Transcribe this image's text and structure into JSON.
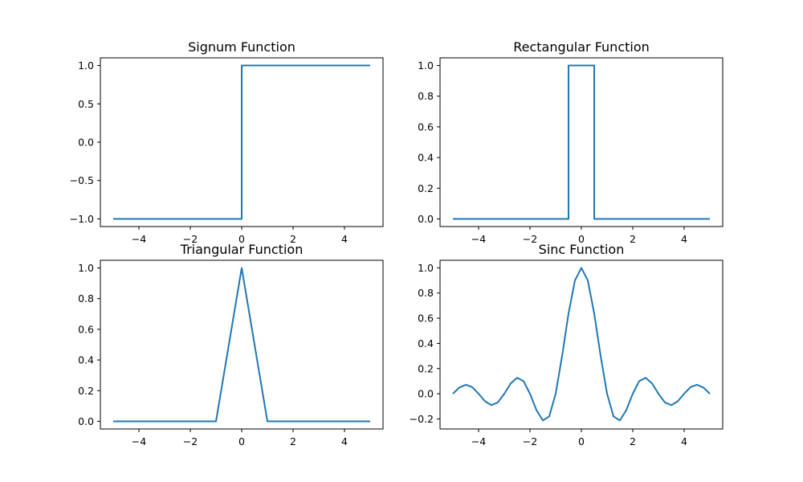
{
  "chart_data": [
    {
      "type": "line",
      "title": "Signum Function",
      "xlim": [
        -5.5,
        5.5
      ],
      "ylim": [
        -1.1,
        1.1
      ],
      "xticks": [
        -4,
        -2,
        0,
        2,
        4
      ],
      "xtick_labels": [
        "−4",
        "−2",
        "0",
        "2",
        "4"
      ],
      "yticks": [
        -1.0,
        -0.5,
        0.0,
        0.5,
        1.0
      ],
      "ytick_labels": [
        "−1.0",
        "−0.5",
        "0.0",
        "0.5",
        "1.0"
      ],
      "color": "#1f77b4",
      "grid": false,
      "series": [
        {
          "x": [
            -5,
            0,
            0,
            5
          ],
          "y": [
            -1,
            -1,
            1,
            1
          ]
        }
      ]
    },
    {
      "type": "line",
      "title": "Rectangular Function",
      "xlim": [
        -5.5,
        5.5
      ],
      "ylim": [
        -0.05,
        1.05
      ],
      "xticks": [
        -4,
        -2,
        0,
        2,
        4
      ],
      "xtick_labels": [
        "−4",
        "−2",
        "0",
        "2",
        "4"
      ],
      "yticks": [
        0.0,
        0.2,
        0.4,
        0.6,
        0.8,
        1.0
      ],
      "ytick_labels": [
        "0.0",
        "0.2",
        "0.4",
        "0.6",
        "0.8",
        "1.0"
      ],
      "color": "#1f77b4",
      "grid": false,
      "series": [
        {
          "x": [
            -5,
            -0.5,
            -0.5,
            0.5,
            0.5,
            5
          ],
          "y": [
            0,
            0,
            1,
            1,
            0,
            0
          ]
        }
      ]
    },
    {
      "type": "line",
      "title": "Triangular Function",
      "xlim": [
        -5.5,
        5.5
      ],
      "ylim": [
        -0.05,
        1.05
      ],
      "xticks": [
        -4,
        -2,
        0,
        2,
        4
      ],
      "xtick_labels": [
        "−4",
        "−2",
        "0",
        "2",
        "4"
      ],
      "yticks": [
        0.0,
        0.2,
        0.4,
        0.6,
        0.8,
        1.0
      ],
      "ytick_labels": [
        "0.0",
        "0.2",
        "0.4",
        "0.6",
        "0.8",
        "1.0"
      ],
      "color": "#1f77b4",
      "grid": false,
      "series": [
        {
          "x": [
            -5,
            -1,
            0,
            1,
            5
          ],
          "y": [
            0,
            0,
            1,
            0,
            0
          ]
        }
      ]
    },
    {
      "type": "line",
      "title": "Sinc Function",
      "xlim": [
        -5.5,
        5.5
      ],
      "ylim": [
        -0.28,
        1.06
      ],
      "xticks": [
        -4,
        -2,
        0,
        2,
        4
      ],
      "xtick_labels": [
        "−4",
        "−2",
        "0",
        "2",
        "4"
      ],
      "yticks": [
        -0.2,
        0.0,
        0.2,
        0.4,
        0.6,
        0.8,
        1.0
      ],
      "ytick_labels": [
        "−0.2",
        "0.0",
        "0.2",
        "0.4",
        "0.6",
        "0.8",
        "1.0"
      ],
      "color": "#1f77b4",
      "grid": false,
      "series": [
        {
          "x": [
            -5,
            -4.75,
            -4.5,
            -4.25,
            -4,
            -3.75,
            -3.5,
            -3.25,
            -3,
            -2.75,
            -2.5,
            -2.25,
            -2,
            -1.75,
            -1.5,
            -1.25,
            -1,
            -0.75,
            -0.5,
            -0.25,
            0,
            0.25,
            0.5,
            0.75,
            1,
            1.25,
            1.5,
            1.75,
            2,
            2.25,
            2.5,
            2.75,
            3,
            3.25,
            3.5,
            3.75,
            4,
            4.25,
            4.5,
            4.75,
            5
          ],
          "y": [
            0,
            0.049,
            0.071,
            0.053,
            0,
            -0.06,
            -0.091,
            -0.069,
            0,
            0.082,
            0.127,
            0.1,
            0,
            -0.129,
            -0.212,
            -0.18,
            0,
            0.3,
            0.637,
            0.9,
            1,
            0.9,
            0.637,
            0.3,
            0,
            -0.18,
            -0.212,
            -0.129,
            0,
            0.1,
            0.127,
            0.082,
            0,
            -0.069,
            -0.091,
            -0.06,
            0,
            0.053,
            0.071,
            0.049,
            0
          ]
        }
      ]
    }
  ]
}
